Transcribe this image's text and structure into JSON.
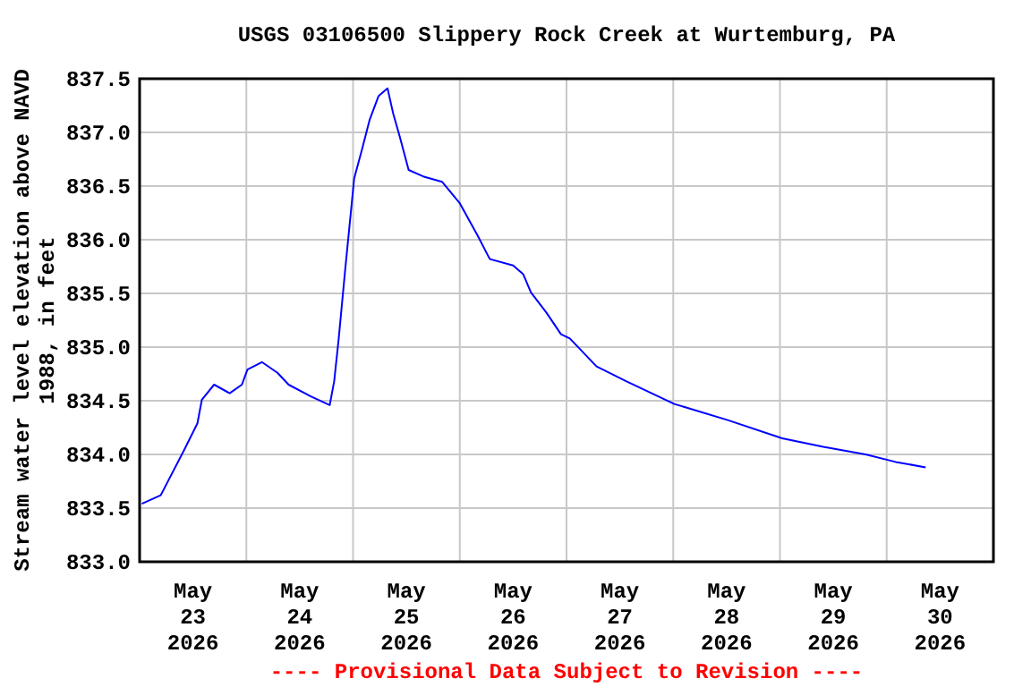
{
  "chart_data": {
    "type": "line",
    "title": "USGS 03106500 Slippery Rock Creek at Wurtemburg, PA",
    "ylabel": "Stream water level elevation above NAVD 1988, in feet",
    "annotations": [
      "---- Provisional Data Subject to Revision ----"
    ],
    "x": [
      "2026-05-23T00:30",
      "2026-05-23T04:45",
      "2026-05-23T10:00",
      "2026-05-23T13:00",
      "2026-05-23T14:00",
      "2026-05-23T16:45",
      "2026-05-23T20:15",
      "2026-05-23T23:00",
      "2026-05-24T00:15",
      "2026-05-24T03:30",
      "2026-05-24T07:00",
      "2026-05-24T09:30",
      "2026-05-24T14:30",
      "2026-05-24T18:45",
      "2026-05-24T19:45",
      "2026-05-24T20:45",
      "2026-05-24T22:15",
      "2026-05-25T00:15",
      "2026-05-25T02:00",
      "2026-05-25T03:45",
      "2026-05-25T05:45",
      "2026-05-25T07:45",
      "2026-05-25T09:00",
      "2026-05-25T10:30",
      "2026-05-25T12:30",
      "2026-05-25T15:45",
      "2026-05-25T20:00",
      "2026-05-26T00:00",
      "2026-05-26T04:00",
      "2026-05-26T06:45",
      "2026-05-26T12:00",
      "2026-05-26T14:15",
      "2026-05-26T16:00",
      "2026-05-26T19:30",
      "2026-05-26T22:45",
      "2026-05-27T00:45",
      "2026-05-27T06:45",
      "2026-05-27T13:30",
      "2026-05-28T00:15",
      "2026-05-28T12:15",
      "2026-05-29T00:30",
      "2026-05-29T09:45",
      "2026-05-29T19:15",
      "2026-05-30T02:00",
      "2026-05-30T08:45"
    ],
    "series": [
      {
        "color": "#0000ff",
        "values": [
          833.54,
          833.62,
          834.04,
          834.29,
          834.51,
          834.65,
          834.57,
          834.65,
          834.79,
          834.86,
          834.76,
          834.65,
          834.54,
          834.46,
          834.68,
          835.07,
          835.73,
          836.57,
          836.84,
          837.12,
          837.34,
          837.41,
          837.18,
          836.96,
          836.65,
          836.59,
          836.54,
          836.34,
          836.04,
          835.82,
          835.76,
          835.68,
          835.51,
          835.32,
          835.12,
          835.08,
          834.82,
          834.68,
          834.47,
          834.32,
          834.15,
          834.07,
          834.0,
          833.93,
          833.88
        ]
      }
    ],
    "xlim": [
      "2026-05-23T00:00",
      "2026-05-31T00:00"
    ],
    "xticks": [
      {
        "value": "2026-05-23T12:00",
        "label": "May\n23\n2026"
      },
      {
        "value": "2026-05-24T12:00",
        "label": "May\n24\n2026"
      },
      {
        "value": "2026-05-25T12:00",
        "label": "May\n25\n2026"
      },
      {
        "value": "2026-05-26T12:00",
        "label": "May\n26\n2026"
      },
      {
        "value": "2026-05-27T12:00",
        "label": "May\n27\n2026"
      },
      {
        "value": "2026-05-28T12:00",
        "label": "May\n28\n2026"
      },
      {
        "value": "2026-05-29T12:00",
        "label": "May\n29\n2026"
      },
      {
        "value": "2026-05-30T12:00",
        "label": "May\n30\n2026"
      },
      {
        "value": "2026-05-24T00:00",
        "label": null
      },
      {
        "value": "2026-05-25T00:00",
        "label": null
      },
      {
        "value": "2026-05-26T00:00",
        "label": null
      },
      {
        "value": "2026-05-27T00:00",
        "label": null
      },
      {
        "value": "2026-05-28T00:00",
        "label": null
      },
      {
        "value": "2026-05-29T00:00",
        "label": null
      },
      {
        "value": "2026-05-30T00:00",
        "label": null
      }
    ],
    "ylim": [
      833.0,
      837.5
    ],
    "yticks": [
      {
        "value": 833,
        "label": "833.0"
      },
      {
        "value": 833.5,
        "label": "833.5"
      },
      {
        "value": 834,
        "label": "834.0"
      },
      {
        "value": 834.5,
        "label": "834.5"
      },
      {
        "value": 835,
        "label": "835.0"
      },
      {
        "value": 835.5,
        "label": "835.5"
      },
      {
        "value": 836,
        "label": "836.0"
      },
      {
        "value": 836.5,
        "label": "836.5"
      },
      {
        "value": 837,
        "label": "837.0"
      },
      {
        "value": 837.5,
        "label": "837.5"
      }
    ],
    "grid": true,
    "marker": "none",
    "line_style": "solid"
  }
}
